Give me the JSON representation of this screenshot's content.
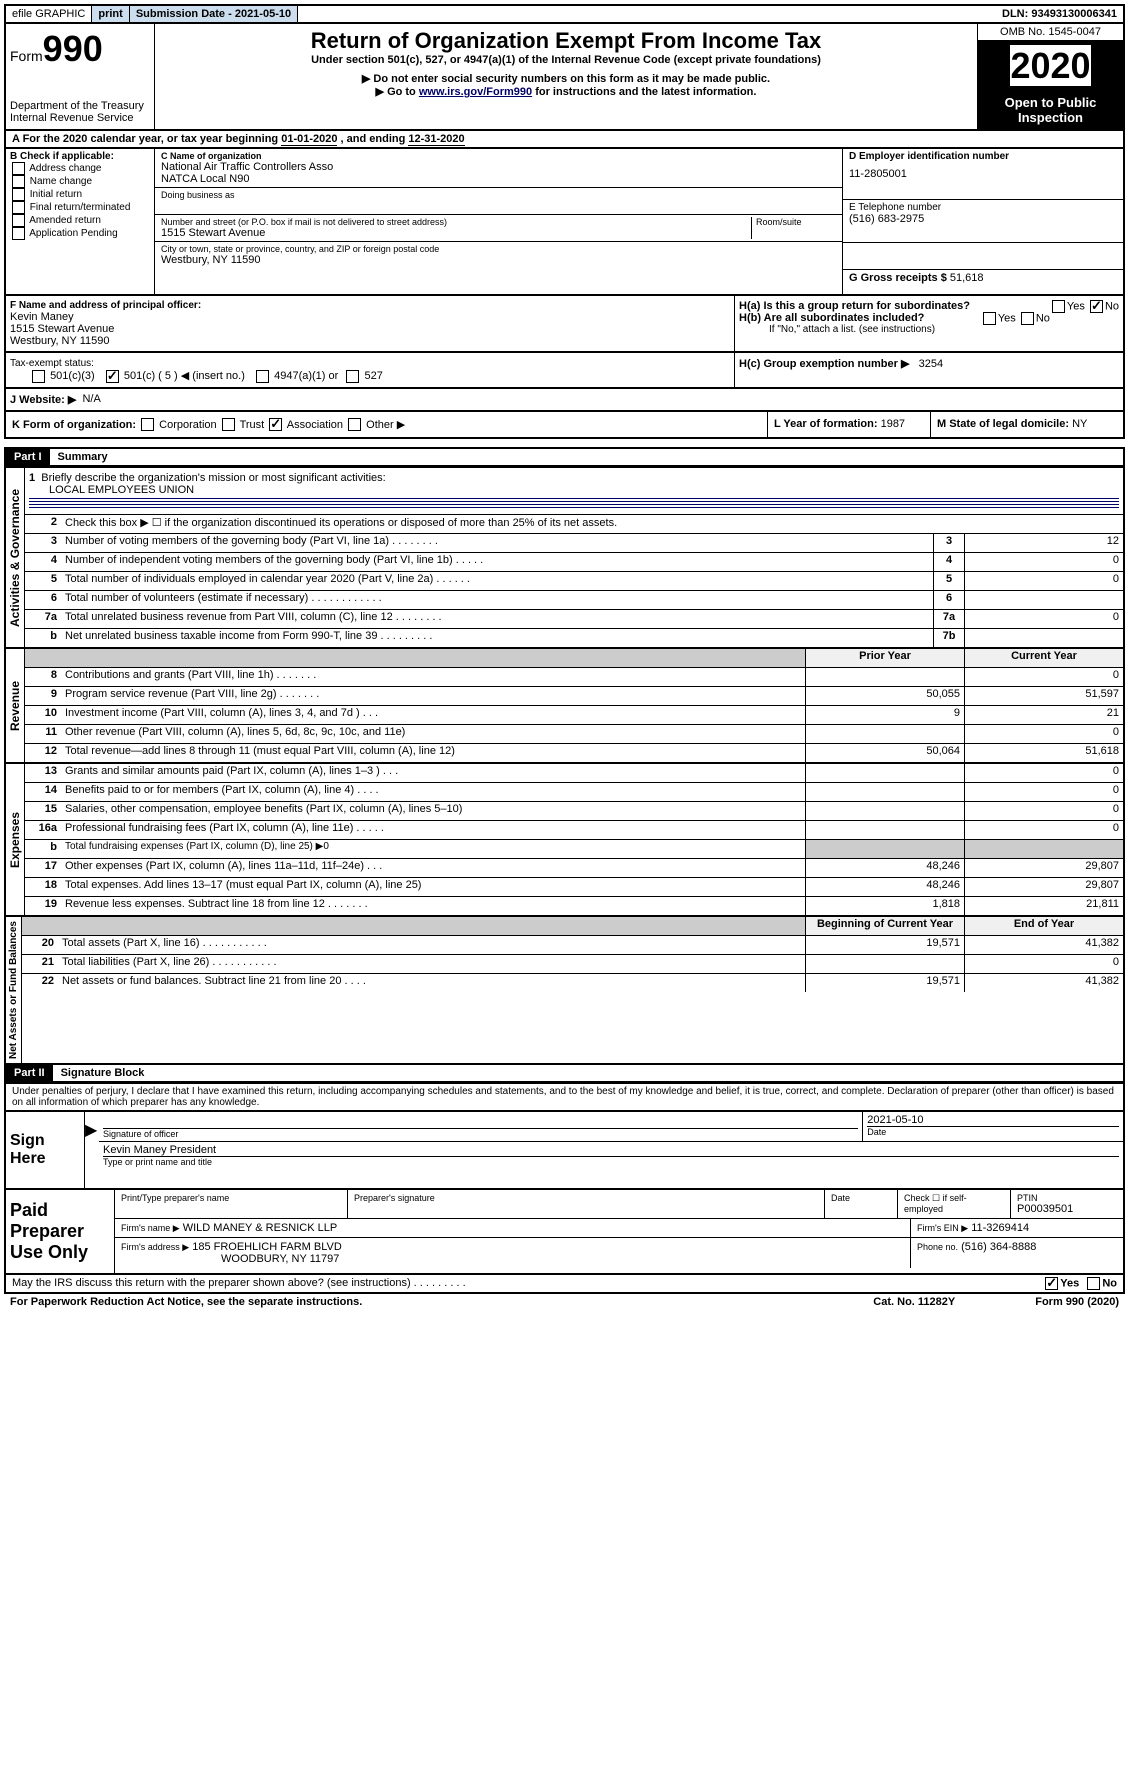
{
  "topbar": {
    "efile": "efile GRAPHIC",
    "print": "print",
    "submission": "Submission Date - 2021-05-10",
    "dln": "DLN: 93493130006341"
  },
  "header": {
    "form_label": "Form",
    "form_num": "990",
    "dept": "Department of the Treasury",
    "irs": "Internal Revenue Service",
    "title": "Return of Organization Exempt From Income Tax",
    "subtitle": "Under section 501(c), 527, or 4947(a)(1) of the Internal Revenue Code (except private foundations)",
    "note1": "▶ Do not enter social security numbers on this form as it may be made public.",
    "note2_pre": "▶ Go to ",
    "note2_link": "www.irs.gov/Form990",
    "note2_post": " for instructions and the latest information.",
    "omb": "OMB No. 1545-0047",
    "year": "2020",
    "open": "Open to Public Inspection"
  },
  "period": {
    "text_pre": "A   For the 2020 calendar year, or tax year beginning ",
    "begin": "01-01-2020",
    "mid": " , and ending ",
    "end": "12-31-2020"
  },
  "checkboxes": {
    "title": "B Check if applicable:",
    "items": [
      "Address change",
      "Name change",
      "Initial return",
      "Final return/terminated",
      "Amended return",
      "Application Pending"
    ]
  },
  "org": {
    "c_label": "C Name of organization",
    "name1": "National Air Traffic Controllers Asso",
    "name2": "NATCA Local N90",
    "dba_label": "Doing business as",
    "addr_label": "Number and street (or P.O. box if mail is not delivered to street address)",
    "room_label": "Room/suite",
    "addr": "1515 Stewart Avenue",
    "city_label": "City or town, state or province, country, and ZIP or foreign postal code",
    "city": "Westbury, NY  11590"
  },
  "right_info": {
    "d_label": "D Employer identification number",
    "ein": "11-2805001",
    "e_label": "E Telephone number",
    "phone": "(516) 683-2975",
    "g_label": "G Gross receipts $",
    "gross": "51,618"
  },
  "section_f": {
    "label": "F  Name and address of principal officer:",
    "name": "Kevin Maney",
    "addr1": "1515 Stewart Avenue",
    "addr2": "Westbury, NY  11590"
  },
  "section_h": {
    "ha": "H(a)  Is this a group return for subordinates?",
    "hb": "H(b)  Are all subordinates included?",
    "hb_note": "If \"No,\" attach a list. (see instructions)",
    "hc": "H(c)  Group exemption number ▶",
    "hc_val": "3254",
    "yes": "Yes",
    "no": "No"
  },
  "tax_status": {
    "label": "Tax-exempt status:",
    "opts": [
      "501(c)(3)",
      "501(c) ( 5 ) ◀ (insert no.)",
      "4947(a)(1) or",
      "527"
    ]
  },
  "website": {
    "label": "J   Website: ▶",
    "val": "N/A"
  },
  "kform": {
    "k": "K Form of organization:",
    "opts": [
      "Corporation",
      "Trust",
      "Association",
      "Other ▶"
    ],
    "l": "L Year of formation:",
    "l_val": "1987",
    "m": "M State of legal domicile:",
    "m_val": "NY"
  },
  "part1": {
    "header": "Part I",
    "title": "Summary",
    "q1": "Briefly describe the organization's mission or most significant activities:",
    "q1_val": "LOCAL EMPLOYEES UNION",
    "q2": "Check this box ▶ ☐  if the organization discontinued its operations or disposed of more than 25% of its net assets.",
    "vert_activities": "Activities & Governance",
    "vert_revenue": "Revenue",
    "vert_expenses": "Expenses",
    "vert_netassets": "Net Assets or Fund Balances",
    "prior": "Prior Year",
    "current": "Current Year",
    "begin": "Beginning of Current Year",
    "end": "End of Year",
    "rows_top": [
      {
        "n": "3",
        "d": "Number of voting members of the governing body (Part VI, line 1a)   .    .    .    .    .    .    .    .",
        "b": "3",
        "v": "12"
      },
      {
        "n": "4",
        "d": "Number of independent voting members of the governing body (Part VI, line 1b)   .    .    .    .    .",
        "b": "4",
        "v": "0"
      },
      {
        "n": "5",
        "d": "Total number of individuals employed in calendar year 2020 (Part V, line 2a)   .    .    .    .    .    .",
        "b": "5",
        "v": "0"
      },
      {
        "n": "6",
        "d": "Total number of volunteers (estimate if necessary)   .    .    .    .    .    .    .    .    .    .    .    .",
        "b": "6",
        "v": ""
      },
      {
        "n": "7a",
        "d": "Total unrelated business revenue from Part VIII, column (C), line 12   .    .    .    .    .    .    .    .",
        "b": "7a",
        "v": "0"
      },
      {
        "n": "b",
        "d": "Net unrelated business taxable income from Form 990-T, line 39   .    .    .    .    .    .    .    .    .",
        "b": "7b",
        "v": ""
      }
    ],
    "rows_rev": [
      {
        "n": "8",
        "d": "Contributions and grants (Part VIII, line 1h)   .    .    .    .    .    .    .",
        "p": "",
        "c": "0"
      },
      {
        "n": "9",
        "d": "Program service revenue (Part VIII, line 2g)   .    .    .    .    .    .    .",
        "p": "50,055",
        "c": "51,597"
      },
      {
        "n": "10",
        "d": "Investment income (Part VIII, column (A), lines 3, 4, and 7d )   .    .    .",
        "p": "9",
        "c": "21"
      },
      {
        "n": "11",
        "d": "Other revenue (Part VIII, column (A), lines 5, 6d, 8c, 9c, 10c, and 11e)",
        "p": "",
        "c": "0"
      },
      {
        "n": "12",
        "d": "Total revenue—add lines 8 through 11 (must equal Part VIII, column (A), line 12)",
        "p": "50,064",
        "c": "51,618"
      }
    ],
    "rows_exp": [
      {
        "n": "13",
        "d": "Grants and similar amounts paid (Part IX, column (A), lines 1–3 )   .    .    .",
        "p": "",
        "c": "0"
      },
      {
        "n": "14",
        "d": "Benefits paid to or for members (Part IX, column (A), line 4)   .    .    .    .",
        "p": "",
        "c": "0"
      },
      {
        "n": "15",
        "d": "Salaries, other compensation, employee benefits (Part IX, column (A), lines 5–10)",
        "p": "",
        "c": "0"
      },
      {
        "n": "16a",
        "d": "Professional fundraising fees (Part IX, column (A), line 11e)   .    .    .    .    .",
        "p": "",
        "c": "0"
      },
      {
        "n": "b",
        "d": "Total fundraising expenses (Part IX, column (D), line 25) ▶0",
        "p": null,
        "c": null
      },
      {
        "n": "17",
        "d": "Other expenses (Part IX, column (A), lines 11a–11d, 11f–24e)   .    .    .",
        "p": "48,246",
        "c": "29,807"
      },
      {
        "n": "18",
        "d": "Total expenses. Add lines 13–17 (must equal Part IX, column (A), line 25)",
        "p": "48,246",
        "c": "29,807"
      },
      {
        "n": "19",
        "d": "Revenue less expenses. Subtract line 18 from line 12   .    .    .    .    .    .    .",
        "p": "1,818",
        "c": "21,811"
      }
    ],
    "rows_net": [
      {
        "n": "20",
        "d": "Total assets (Part X, line 16)   .    .    .    .    .    .    .    .    .    .    .",
        "p": "19,571",
        "c": "41,382"
      },
      {
        "n": "21",
        "d": "Total liabilities (Part X, line 26)   .    .    .    .    .    .    .    .    .    .    .",
        "p": "",
        "c": "0"
      },
      {
        "n": "22",
        "d": "Net assets or fund balances. Subtract line 21 from line 20   .    .    .    .",
        "p": "19,571",
        "c": "41,382"
      }
    ]
  },
  "part2": {
    "header": "Part II",
    "title": "Signature Block",
    "penalty": "Under penalties of perjury, I declare that I have examined this return, including accompanying schedules and statements, and to the best of my knowledge and belief, it is true, correct, and complete. Declaration of preparer (other than officer) is based on all information of which preparer has any knowledge."
  },
  "sign": {
    "label": "Sign Here",
    "sig_label": "Signature of officer",
    "date": "2021-05-10",
    "date_label": "Date",
    "name": "Kevin Maney  President",
    "name_label": "Type or print name and title"
  },
  "paid": {
    "label": "Paid Preparer Use Only",
    "col1": "Print/Type preparer's name",
    "col2": "Preparer's signature",
    "col3": "Date",
    "col4a": "Check ☐ if self-employed",
    "col5": "PTIN",
    "ptin": "P00039501",
    "firm_name_label": "Firm's name      ▶",
    "firm_name": "WILD MANEY & RESNICK LLP",
    "firm_ein_label": "Firm's EIN ▶",
    "firm_ein": "11-3269414",
    "firm_addr_label": "Firm's address ▶",
    "firm_addr1": "185 FROEHLICH FARM BLVD",
    "firm_addr2": "WOODBURY, NY  11797",
    "phone_label": "Phone no.",
    "phone": "(516) 364-8888"
  },
  "footer": {
    "discuss": "May the IRS discuss this return with the preparer shown above? (see instructions)   .    .    .    .    .    .    .    .    .",
    "yes": "Yes",
    "no": "No",
    "paperwork": "For Paperwork Reduction Act Notice, see the separate instructions.",
    "cat": "Cat. No. 11282Y",
    "form": "Form 990 (2020)"
  }
}
